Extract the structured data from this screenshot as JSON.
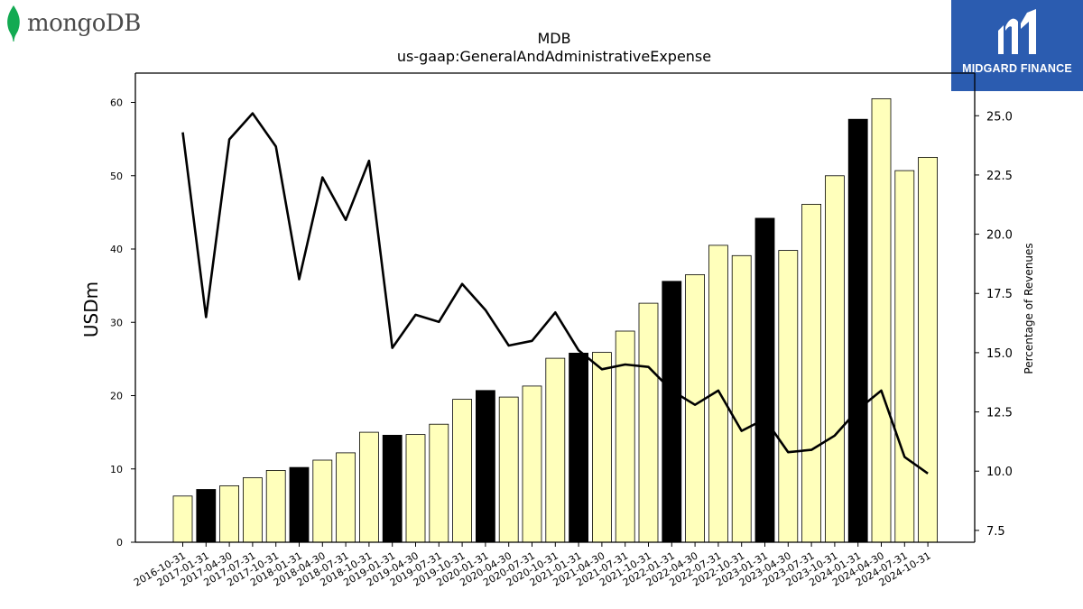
{
  "logos": {
    "left_text": "mongoDB",
    "right_text": "MIDGARD FINANCE",
    "leaf_color": "#13aa52",
    "brand_bg": "#2b5cb0"
  },
  "chart_data": {
    "type": "bar",
    "title": "MDB",
    "subtitle": "us-gaap:GeneralAndAdministrativeExpense",
    "ylabel": "USDm",
    "y2label": "Percentage of Revenues",
    "ylim": [
      0,
      64
    ],
    "y2lim": [
      7.0,
      26.8
    ],
    "yticks": [
      0,
      10,
      20,
      30,
      40,
      50,
      60
    ],
    "y2ticks": [
      "7.5",
      "10.0",
      "12.5",
      "15.0",
      "17.5",
      "20.0",
      "22.5",
      "25.0"
    ],
    "categories": [
      "2016-10-31",
      "2017-01-31",
      "2017-04-30",
      "2017-07-31",
      "2017-10-31",
      "2018-01-31",
      "2018-04-30",
      "2018-07-31",
      "2018-10-31",
      "2019-01-31",
      "2019-04-30",
      "2019-07-31",
      "2019-10-31",
      "2020-01-31",
      "2020-04-30",
      "2020-07-31",
      "2020-10-31",
      "2021-01-31",
      "2021-04-30",
      "2021-07-31",
      "2021-10-31",
      "2022-01-31",
      "2022-04-30",
      "2022-07-31",
      "2022-10-31",
      "2023-01-31",
      "2023-04-30",
      "2023-07-31",
      "2023-10-31",
      "2024-01-31",
      "2024-04-30",
      "2024-07-31",
      "2024-10-31"
    ],
    "series": [
      {
        "kind": "bar",
        "values": [
          6.3,
          7.2,
          7.7,
          8.8,
          9.8,
          10.2,
          11.2,
          12.2,
          15.0,
          14.6,
          14.7,
          16.1,
          19.5,
          20.7,
          19.8,
          21.3,
          25.1,
          25.8,
          25.9,
          28.8,
          32.6,
          35.6,
          36.5,
          40.5,
          39.1,
          44.2,
          39.8,
          46.1,
          50.0,
          57.7,
          60.5,
          50.7,
          52.5
        ],
        "fiscal_year_end": [
          false,
          true,
          false,
          false,
          false,
          true,
          false,
          false,
          false,
          true,
          false,
          false,
          false,
          true,
          false,
          false,
          false,
          true,
          false,
          false,
          false,
          true,
          false,
          false,
          false,
          true,
          false,
          false,
          false,
          true,
          false,
          false,
          false
        ],
        "color": "#ffffbb",
        "highlight_color": "#000000"
      },
      {
        "kind": "line",
        "axis": "right",
        "values": [
          24.3,
          16.5,
          24.0,
          25.1,
          23.7,
          18.1,
          22.4,
          20.6,
          23.1,
          15.2,
          16.6,
          16.3,
          17.9,
          16.8,
          15.3,
          15.5,
          16.7,
          15.1,
          14.3,
          14.5,
          14.4,
          13.4,
          12.8,
          13.4,
          11.7,
          12.2,
          10.8,
          10.9,
          11.5,
          12.6,
          13.4,
          10.6,
          9.9
        ],
        "color": "#000000"
      }
    ]
  }
}
